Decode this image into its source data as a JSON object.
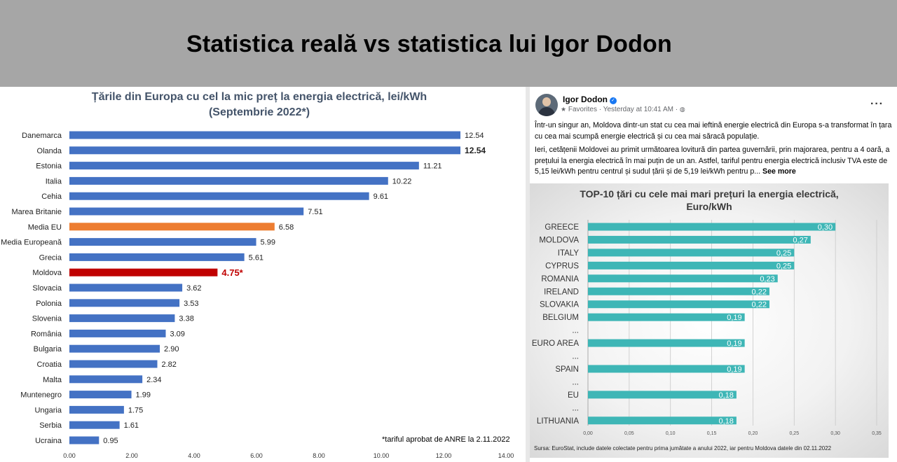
{
  "header": {
    "title": "Statistica reală vs statistica lui Igor Dodon"
  },
  "colors": {
    "bar_default": "#4472c4",
    "bar_highlight_eu": "#ed7d31",
    "bar_highlight_md": "#c00000",
    "bar_teal": "#3eb6b6"
  },
  "chart_data": [
    {
      "type": "bar",
      "orientation": "horizontal",
      "title": "Țările din Europa cu cel la mic preț la energia electrică, lei/kWh",
      "subtitle": "(Septembrie 2022*)",
      "categories": [
        "Danemarca",
        "Olanda",
        "Estonia",
        "Italia",
        "Cehia",
        "Marea Britanie",
        "Media EU",
        "Media Europeană",
        "Grecia",
        "Moldova",
        "Slovacia",
        "Polonia",
        "Slovenia",
        "România",
        "Bulgaria",
        "Croatia",
        "Malta",
        "Muntenegro",
        "Ungaria",
        "Serbia",
        "Ucraina"
      ],
      "values": [
        12.54,
        12.54,
        11.21,
        10.22,
        9.61,
        7.51,
        6.58,
        5.99,
        5.61,
        4.75,
        3.62,
        3.53,
        3.38,
        3.09,
        2.9,
        2.82,
        2.34,
        1.99,
        1.75,
        1.61,
        0.95
      ],
      "value_labels": [
        "12.54",
        "12.54",
        "11.21",
        "10.22",
        "9.61",
        "7.51",
        "6.58",
        "5.99",
        "5.61",
        "4.75*",
        "3.62",
        "3.53",
        "3.38",
        "3.09",
        "2.90",
        "2.82",
        "2.34",
        "1.99",
        "1.75",
        "1.61",
        "0.95"
      ],
      "highlights": {
        "Media EU": "orange",
        "Moldova": "red"
      },
      "bold_labels": [
        "Olanda",
        "Moldova"
      ],
      "xlim": [
        0,
        14
      ],
      "x_ticks": [
        "0.00",
        "2.00",
        "4.00",
        "6.00",
        "8.00",
        "10.00",
        "12.00",
        "14.00"
      ],
      "footnote": "*tariful aprobat de ANRE la 2.11.2022"
    },
    {
      "type": "bar",
      "orientation": "horizontal",
      "title": "TOP-10 țări cu cele mai mari prețuri la energia electrică,",
      "subtitle": "Euro/kWh",
      "rows": [
        {
          "label": "GREECE",
          "value": 0.3,
          "value_label": "0,30"
        },
        {
          "label": "MOLDOVA",
          "value": 0.27,
          "value_label": "0,27"
        },
        {
          "label": "ITALY",
          "value": 0.25,
          "value_label": "0,25"
        },
        {
          "label": "CYPRUS",
          "value": 0.25,
          "value_label": "0,25"
        },
        {
          "label": "ROMANIA",
          "value": 0.23,
          "value_label": "0,23"
        },
        {
          "label": "IRELAND",
          "value": 0.22,
          "value_label": "0,22"
        },
        {
          "label": "SLOVAKIA",
          "value": 0.22,
          "value_label": "0,22"
        },
        {
          "label": "BELGIUM",
          "value": 0.19,
          "value_label": "0,19"
        },
        {
          "label": "...",
          "value": null,
          "value_label": ""
        },
        {
          "label": "EURO AREA",
          "value": 0.19,
          "value_label": "0,19"
        },
        {
          "label": "...",
          "value": null,
          "value_label": ""
        },
        {
          "label": "SPAIN",
          "value": 0.19,
          "value_label": "0,19"
        },
        {
          "label": "...",
          "value": null,
          "value_label": ""
        },
        {
          "label": "EU",
          "value": 0.18,
          "value_label": "0,18"
        },
        {
          "label": "...",
          "value": null,
          "value_label": ""
        },
        {
          "label": "LITHUANIA",
          "value": 0.18,
          "value_label": "0,18"
        }
      ],
      "xlim": [
        0,
        0.35
      ],
      "x_ticks": [
        "0,00",
        "0,05",
        "0,10",
        "0,15",
        "0,20",
        "0,25",
        "0,30",
        "0,35"
      ],
      "grid": true,
      "source": "Sursa: EuroStat, include datele colectate pentru prima jumătate a anului 2022, iar pentru Moldova datele din 02.11.2022"
    }
  ],
  "post": {
    "author": "Igor Dodon",
    "verified_icon": "✓",
    "favorites_icon": "★",
    "meta": "Favorites · Yesterday at 10:41 AM ·",
    "globe_icon": "◍",
    "more_icon": "···",
    "paragraph1": "Într-un singur an, Moldova dintr-un stat cu cea mai ieftină energie electrică din Europa s-a transformat în țara cu cea mai scumpă energie electrică și cu cea mai săracă populație.",
    "paragraph2": "Ieri, cetățenii Moldovei au primit următoarea lovitură din partea guvernării, prin majorarea, pentru a 4 oară, a prețului la energia electrică în mai puțin de un an. Astfel, tariful pentru energia electrică inclusiv TVA este de 5,15 lei/kWh pentru centrul și sudul țării și de 5,19 lei/kWh pentru p...",
    "see_more": "See more"
  }
}
